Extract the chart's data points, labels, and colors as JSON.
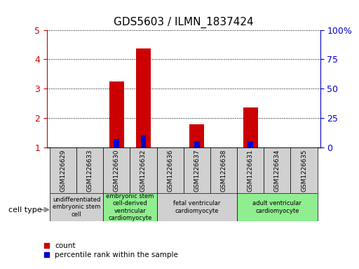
{
  "title": "GDS5603 / ILMN_1837424",
  "samples": [
    "GSM1226629",
    "GSM1226633",
    "GSM1226630",
    "GSM1226632",
    "GSM1226636",
    "GSM1226637",
    "GSM1226638",
    "GSM1226631",
    "GSM1226634",
    "GSM1226635"
  ],
  "count_values": [
    1.0,
    1.0,
    3.25,
    4.38,
    1.0,
    1.78,
    1.0,
    2.35,
    1.0,
    1.0
  ],
  "percentile_values": [
    0,
    0,
    7,
    10,
    0,
    5,
    0,
    5,
    0,
    0
  ],
  "ylim_left": [
    1,
    5
  ],
  "ylim_right": [
    0,
    100
  ],
  "yticks_left": [
    1,
    2,
    3,
    4,
    5
  ],
  "yticks_right": [
    0,
    25,
    50,
    75,
    100
  ],
  "ytick_labels_right": [
    "0",
    "25",
    "50",
    "75",
    "100%"
  ],
  "bar_color_red": "#cc0000",
  "bar_color_blue": "#0000cc",
  "cell_types": [
    {
      "label": "undifferentiated\nembryonic stem\ncell",
      "start": 0,
      "end": 2,
      "color": "#d0d0d0"
    },
    {
      "label": "embryonic stem\ncell-derived\nventricular\ncardiomyocyte",
      "start": 2,
      "end": 4,
      "color": "#90ee90"
    },
    {
      "label": "fetal ventricular\ncardiomyocyte",
      "start": 4,
      "end": 7,
      "color": "#d0d0d0"
    },
    {
      "label": "adult ventricular\ncardiomyocyte",
      "start": 7,
      "end": 10,
      "color": "#90ee90"
    }
  ],
  "legend_items": [
    {
      "label": "count",
      "color": "#cc0000"
    },
    {
      "label": "percentile rank within the sample",
      "color": "#0000cc"
    }
  ],
  "cell_type_label": "cell type",
  "bar_width": 0.55,
  "blue_bar_width": 0.2,
  "grid_style": "dotted",
  "grid_color": "black",
  "tick_color_left": "#cc0000",
  "tick_color_right": "#0000cc",
  "bar_base": 1.0,
  "sample_box_color": "#d0d0d0",
  "n_samples": 10
}
